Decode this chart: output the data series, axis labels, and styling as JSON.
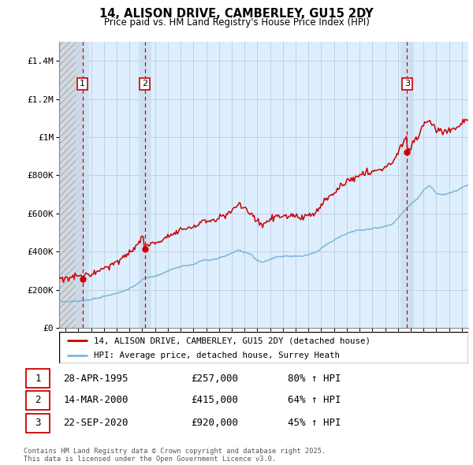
{
  "title": "14, ALISON DRIVE, CAMBERLEY, GU15 2DY",
  "subtitle": "Price paid vs. HM Land Registry's House Price Index (HPI)",
  "legend_line1": "14, ALISON DRIVE, CAMBERLEY, GU15 2DY (detached house)",
  "legend_line2": "HPI: Average price, detached house, Surrey Heath",
  "footer_line1": "Contains HM Land Registry data © Crown copyright and database right 2025.",
  "footer_line2": "This data is licensed under the Open Government Licence v3.0.",
  "transactions": [
    {
      "num": 1,
      "date": "28-APR-1995",
      "price": "£257,000",
      "pct": "80% ↑ HPI",
      "x": 1995.32
    },
    {
      "num": 2,
      "date": "14-MAR-2000",
      "price": "£415,000",
      "pct": "64% ↑ HPI",
      "x": 2000.2
    },
    {
      "num": 3,
      "date": "22-SEP-2020",
      "price": "£920,000",
      "pct": "45% ↑ HPI",
      "x": 2020.72
    }
  ],
  "transaction_prices": [
    257000,
    415000,
    920000
  ],
  "hpi_color": "#7bb8d8",
  "price_color": "#cc0000",
  "dashed_vline_color": "#cc0000",
  "chart_bg_color": "#ddeeff",
  "hatch_color": "#bbbbbb",
  "ylim": [
    0,
    1500000
  ],
  "xlim_start": 1993.5,
  "xlim_end": 2025.5,
  "yticks": [
    0,
    200000,
    400000,
    600000,
    800000,
    1000000,
    1200000,
    1400000
  ],
  "ylabels": [
    "£0",
    "£200K",
    "£400K",
    "£600K",
    "£800K",
    "£1M",
    "£1.2M",
    "£1.4M"
  ]
}
